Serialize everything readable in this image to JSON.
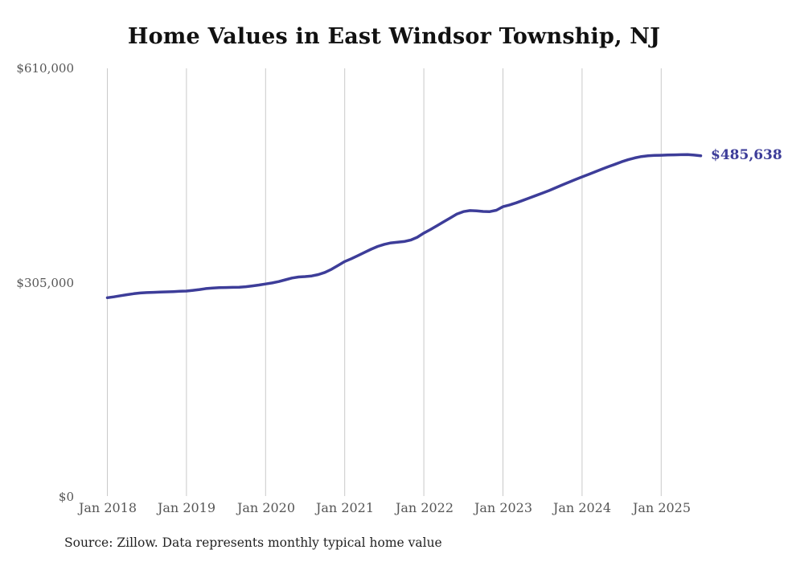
{
  "chart_data": {
    "type": "line",
    "title": "Home Values in East Windsor Township, NJ",
    "xlabel": "",
    "ylabel": "",
    "ylim": [
      0,
      610000
    ],
    "grid": "vertical-only",
    "legend": "none",
    "line_color": "#3d3d99",
    "gridline_color": "#c9c9c9",
    "y_tick_labels": [
      "$610,000",
      "$305,000",
      "$0"
    ],
    "x_tick_labels": [
      "Jan 2018",
      "Jan 2019",
      "Jan 2020",
      "Jan 2021",
      "Jan 2022",
      "Jan 2023",
      "Jan 2024",
      "Jan 2025"
    ],
    "end_label": "$485,638",
    "x": [
      "2018-01",
      "2018-02",
      "2018-03",
      "2018-04",
      "2018-05",
      "2018-06",
      "2018-07",
      "2018-08",
      "2018-09",
      "2018-10",
      "2018-11",
      "2018-12",
      "2019-01",
      "2019-02",
      "2019-03",
      "2019-04",
      "2019-05",
      "2019-06",
      "2019-07",
      "2019-08",
      "2019-09",
      "2019-10",
      "2019-11",
      "2019-12",
      "2020-01",
      "2020-02",
      "2020-03",
      "2020-04",
      "2020-05",
      "2020-06",
      "2020-07",
      "2020-08",
      "2020-09",
      "2020-10",
      "2020-11",
      "2020-12",
      "2021-01",
      "2021-02",
      "2021-03",
      "2021-04",
      "2021-05",
      "2021-06",
      "2021-07",
      "2021-08",
      "2021-09",
      "2021-10",
      "2021-11",
      "2021-12",
      "2022-01",
      "2022-02",
      "2022-03",
      "2022-04",
      "2022-05",
      "2022-06",
      "2022-07",
      "2022-08",
      "2022-09",
      "2022-10",
      "2022-11",
      "2022-12",
      "2023-01",
      "2023-02",
      "2023-03",
      "2023-04",
      "2023-05",
      "2023-06",
      "2023-07",
      "2023-08",
      "2023-09",
      "2023-10",
      "2023-11",
      "2023-12",
      "2024-01",
      "2024-02",
      "2024-03",
      "2024-04",
      "2024-05",
      "2024-06",
      "2024-07",
      "2024-08",
      "2024-09",
      "2024-10",
      "2024-11",
      "2024-12",
      "2025-01",
      "2025-02",
      "2025-03",
      "2025-04",
      "2025-05",
      "2025-06",
      "2025-07"
    ],
    "values_usd": [
      283500,
      284800,
      286300,
      287800,
      289200,
      290200,
      290800,
      291200,
      291500,
      291800,
      292200,
      292600,
      293000,
      294000,
      295200,
      296500,
      297300,
      297800,
      298000,
      298200,
      298500,
      299200,
      300300,
      301600,
      303000,
      304500,
      306500,
      309000,
      311500,
      313000,
      313600,
      314500,
      316500,
      319500,
      324000,
      329500,
      335000,
      339000,
      343500,
      348000,
      352500,
      356500,
      359500,
      361500,
      362500,
      363500,
      365500,
      369500,
      375500,
      380500,
      386000,
      391500,
      397000,
      402500,
      406000,
      407500,
      407200,
      406300,
      406000,
      408000,
      413000,
      415500,
      418500,
      422000,
      425500,
      429000,
      432500,
      436000,
      440000,
      444000,
      448000,
      451800,
      455500,
      459000,
      462800,
      466500,
      470000,
      473500,
      477000,
      480000,
      482500,
      484500,
      485500,
      486000,
      486300,
      486600,
      486900,
      487100,
      487200,
      486500,
      485638
    ]
  },
  "source_note": "Source: Zillow. Data represents monthly typical home value"
}
